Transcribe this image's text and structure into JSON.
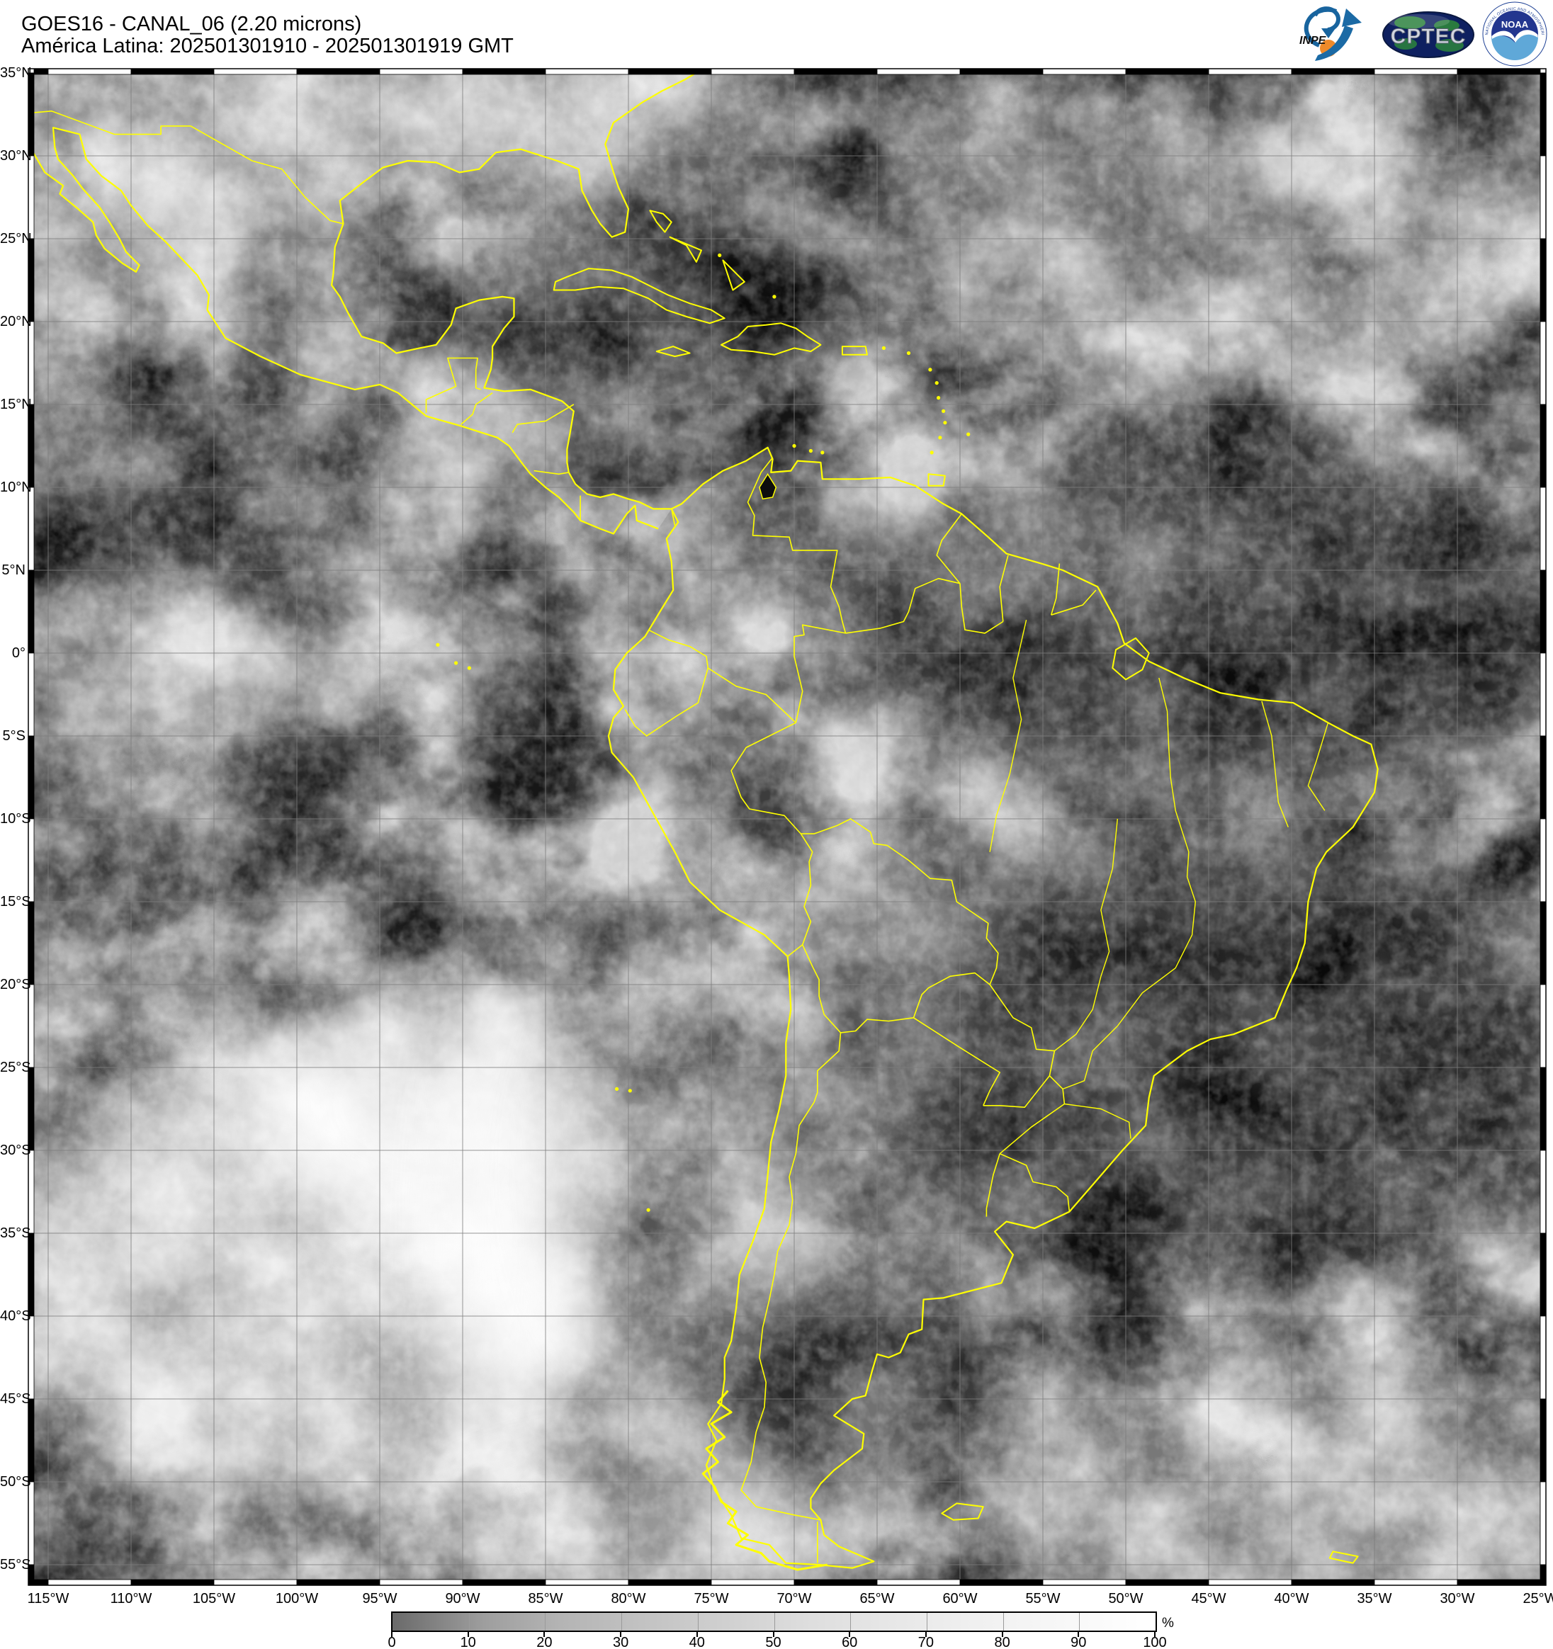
{
  "header": {
    "title_line1": "GOES16 - CANAL_06 (2.20 microns)",
    "title_line2": "América Latina: 202501301910 - 202501301919 GMT"
  },
  "logos": {
    "inpe": {
      "label": "INPE"
    },
    "cptec": {
      "label": "CPTEC"
    },
    "noaa": {
      "label": "NOAA",
      "ring_top": "NATIONAL OCEANIC AND ATMOSPHERIC ADMINISTRATION",
      "ring_bottom": "U.S. DEPARTMENT OF COMMERCE"
    }
  },
  "map": {
    "lat_ticks": [
      {
        "label": "35°N",
        "deg": 35
      },
      {
        "label": "30°N",
        "deg": 30
      },
      {
        "label": "25°N",
        "deg": 25
      },
      {
        "label": "20°N",
        "deg": 20
      },
      {
        "label": "15°N",
        "deg": 15
      },
      {
        "label": "10°N",
        "deg": 10
      },
      {
        "label": "5°N",
        "deg": 5
      },
      {
        "label": "0°",
        "deg": 0
      },
      {
        "label": "5°S",
        "deg": -5
      },
      {
        "label": "10°S",
        "deg": -10
      },
      {
        "label": "15°S",
        "deg": -15
      },
      {
        "label": "20°S",
        "deg": -20
      },
      {
        "label": "25°S",
        "deg": -25
      },
      {
        "label": "30°S",
        "deg": -30
      },
      {
        "label": "35°S",
        "deg": -35
      },
      {
        "label": "40°S",
        "deg": -40
      },
      {
        "label": "45°S",
        "deg": -45
      },
      {
        "label": "50°S",
        "deg": -50
      },
      {
        "label": "55°S",
        "deg": -55
      }
    ],
    "lon_ticks": [
      {
        "label": "115°W",
        "deg": -115
      },
      {
        "label": "110°W",
        "deg": -110
      },
      {
        "label": "105°W",
        "deg": -105
      },
      {
        "label": "100°W",
        "deg": -100
      },
      {
        "label": "95°W",
        "deg": -95
      },
      {
        "label": "90°W",
        "deg": -90
      },
      {
        "label": "85°W",
        "deg": -85
      },
      {
        "label": "80°W",
        "deg": -80
      },
      {
        "label": "75°W",
        "deg": -75
      },
      {
        "label": "70°W",
        "deg": -70
      },
      {
        "label": "65°W",
        "deg": -65
      },
      {
        "label": "60°W",
        "deg": -60
      },
      {
        "label": "55°W",
        "deg": -55
      },
      {
        "label": "50°W",
        "deg": -50
      },
      {
        "label": "45°W",
        "deg": -45
      },
      {
        "label": "40°W",
        "deg": -40
      },
      {
        "label": "35°W",
        "deg": -35
      },
      {
        "label": "30°W",
        "deg": -30
      },
      {
        "label": "25°W",
        "deg": -25
      }
    ]
  },
  "colorbar": {
    "unit": "%",
    "min": 0,
    "max": 100,
    "ticks": [
      0,
      10,
      20,
      30,
      40,
      50,
      60,
      70,
      80,
      90,
      100
    ]
  },
  "colors": {
    "coastline": "#ffff00",
    "grid_line": "#7d7d7d",
    "ocean_dark": "#161616"
  }
}
